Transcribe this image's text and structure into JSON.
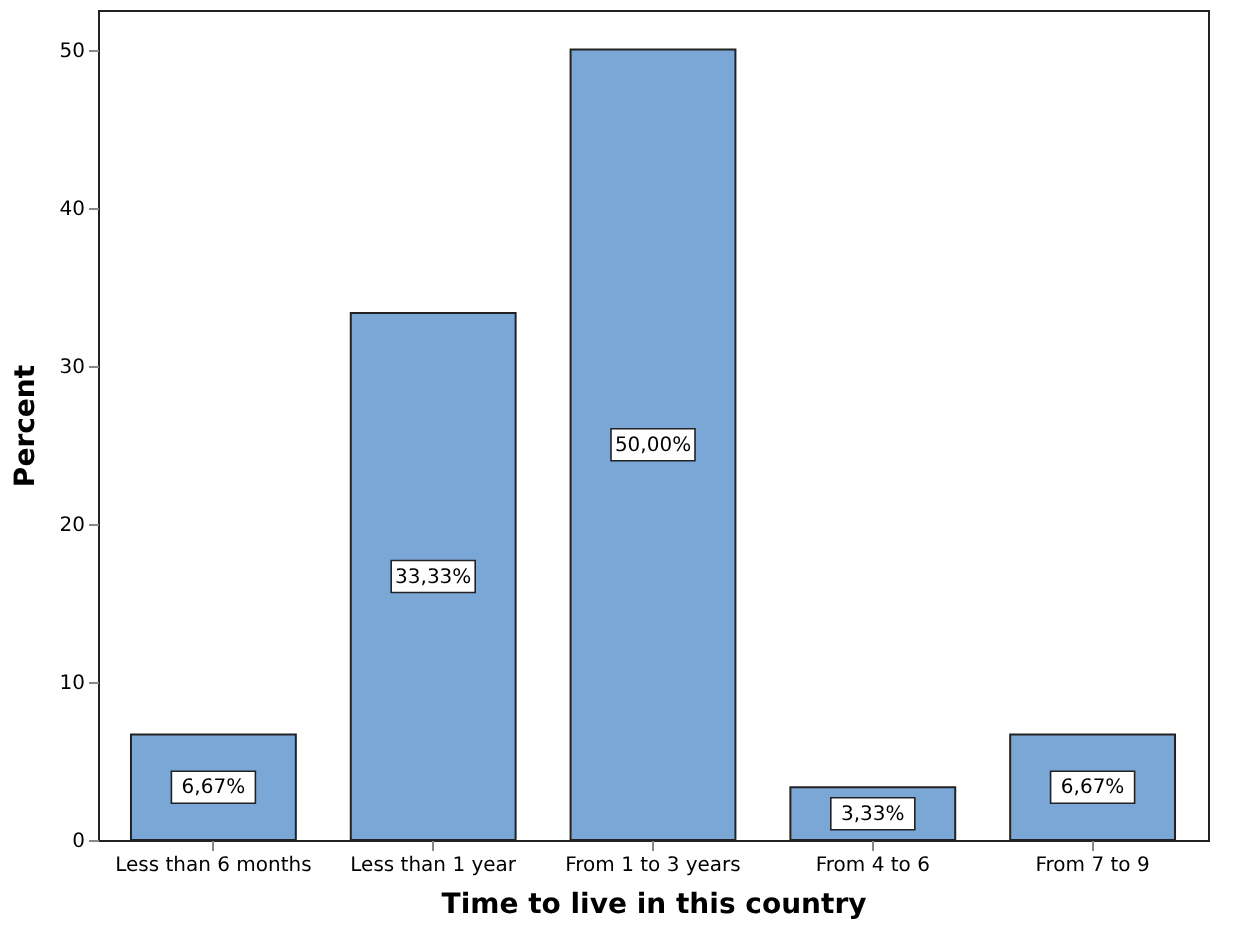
{
  "chart_data": {
    "type": "bar",
    "xlabel": "Time to live in this country",
    "ylabel": "Percent",
    "categories": [
      "Less than 6 months",
      "Less than 1 year",
      "From 1 to 3 years",
      "From 4 to 6",
      "From 7 to 9"
    ],
    "values": [
      6.67,
      33.33,
      50.0,
      3.33,
      6.67
    ],
    "value_labels": [
      "6,67%",
      "33,33%",
      "50,00%",
      "3,33%",
      "6,67%"
    ],
    "color": "#7ba7d7",
    "ylim": [
      0,
      52.5
    ],
    "yticks": [
      0,
      10,
      20,
      30,
      40,
      50
    ],
    "grid": false
  }
}
